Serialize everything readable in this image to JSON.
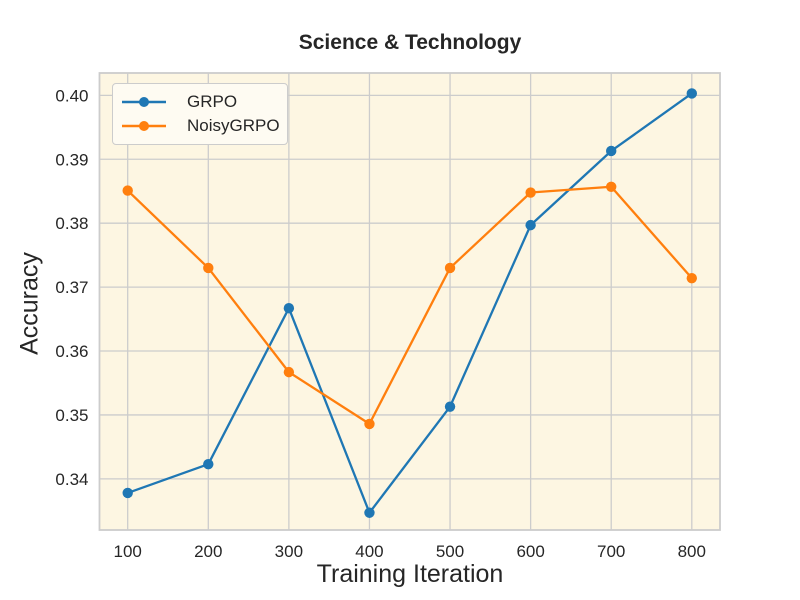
{
  "figure": {
    "background_color": "#ffffff",
    "plot_background_color": "#fdf6e2",
    "grid_color": "#cccccc",
    "spine_color": "#cccccc",
    "text_color": "#262626"
  },
  "chart_data": {
    "type": "line",
    "title": "Science & Technology",
    "xlabel": "Training Iteration",
    "ylabel": "Accuracy",
    "x": [
      100,
      200,
      300,
      400,
      500,
      600,
      700,
      800
    ],
    "series": [
      {
        "name": "GRPO",
        "color": "#1f77b4",
        "marker": "circle",
        "values": [
          0.3378,
          0.3423,
          0.3667,
          0.3347,
          0.3513,
          0.3797,
          0.3913,
          0.4003
        ]
      },
      {
        "name": "NoisyGRPO",
        "color": "#ff7f0e",
        "marker": "circle",
        "values": [
          0.3851,
          0.373,
          0.3567,
          0.3486,
          0.373,
          0.3848,
          0.3857,
          0.3714
        ]
      }
    ],
    "xticks": [
      100,
      200,
      300,
      400,
      500,
      600,
      700,
      800
    ],
    "yticks": [
      0.34,
      0.35,
      0.36,
      0.37,
      0.38,
      0.39,
      0.4
    ],
    "xlim": [
      65,
      835
    ],
    "ylim": [
      0.332,
      0.4035
    ],
    "grid": true,
    "legend_position": "upper left"
  }
}
